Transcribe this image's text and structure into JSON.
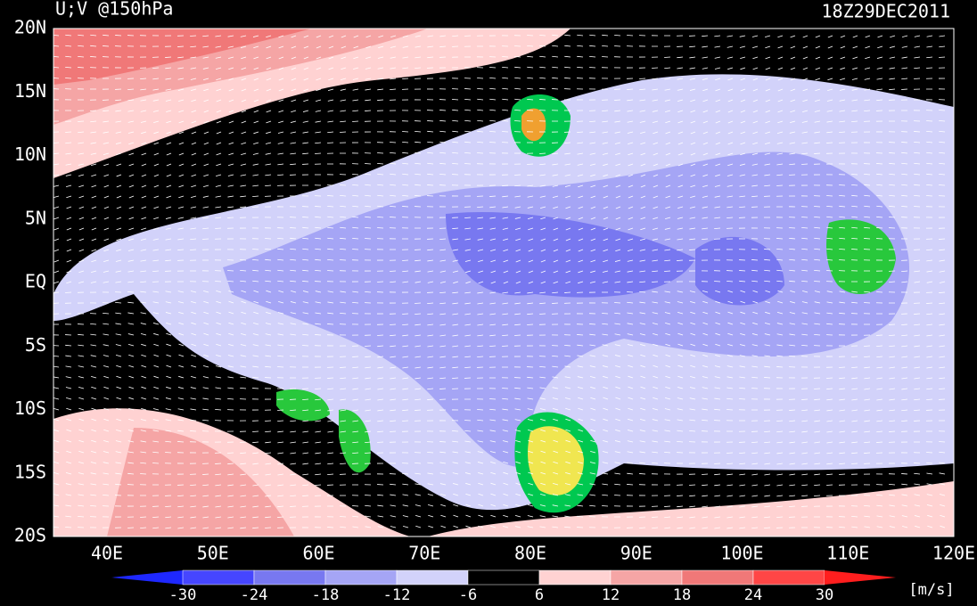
{
  "header": {
    "title": "U;V @150hPa",
    "time": "18Z29DEC2011"
  },
  "lat_labels": [
    "20N",
    "15N",
    "10N",
    "5N",
    "EQ",
    "5S",
    "10S",
    "15S",
    "20S"
  ],
  "lon_labels": [
    "40E",
    "50E",
    "60E",
    "70E",
    "80E",
    "90E",
    "100E",
    "110E",
    "120E"
  ],
  "colorbar": {
    "labels": [
      "-30",
      "-24",
      "-18",
      "-12",
      "-6",
      "6",
      "12",
      "18",
      "24",
      "30"
    ],
    "colors": [
      "#1e28ff",
      "#4646ff",
      "#7878f0",
      "#a5a5f5",
      "#d2d2fa",
      "#000000",
      "#ffd2d2",
      "#f5a5a5",
      "#f07878",
      "#ff4646",
      "#ff1e1e"
    ],
    "units": "[m/s]"
  }
}
